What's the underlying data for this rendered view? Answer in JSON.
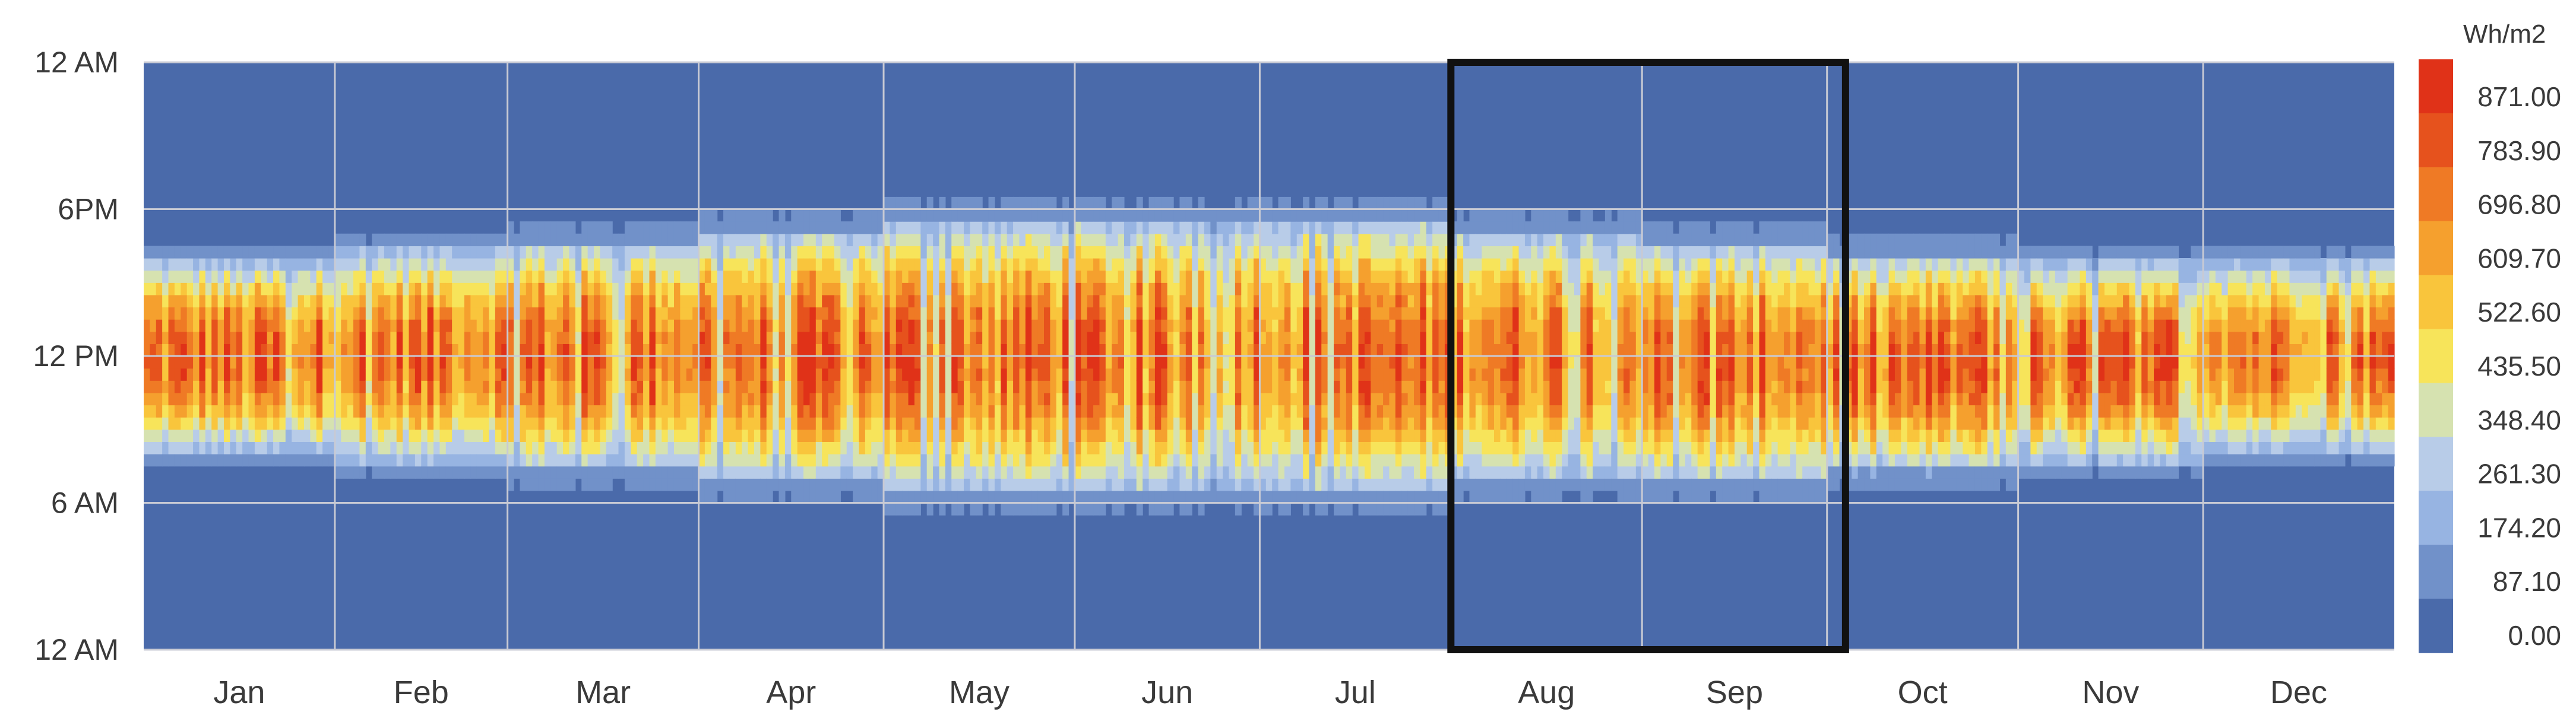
{
  "chart_data": {
    "type": "heatmap",
    "title": "",
    "xlabel": "",
    "ylabel": "",
    "unit_label": "Wh/m2",
    "x_categories": [
      "Jan",
      "Feb",
      "Mar",
      "Apr",
      "May",
      "Jun",
      "Jul",
      "Aug",
      "Sep",
      "Oct",
      "Nov",
      "Dec"
    ],
    "days_per_month": [
      31,
      28,
      31,
      30,
      31,
      30,
      31,
      31,
      30,
      31,
      30,
      31
    ],
    "y_tick_labels": [
      "12 AM",
      "6PM",
      "12 PM",
      "6 AM",
      "12 AM"
    ],
    "y_tick_hours": [
      24,
      18,
      12,
      6,
      0
    ],
    "y_range_hours": [
      0,
      24
    ],
    "x_range_days": [
      1,
      365
    ],
    "color_scale": {
      "min": 0,
      "max": 871,
      "ticks": [
        "871.00",
        "783.90",
        "696.80",
        "609.70",
        "522.60",
        "435.50",
        "348.40",
        "261.30",
        "174.20",
        "87.10",
        "0.00"
      ],
      "colors": [
        "#4a6aaa",
        "#7191c9",
        "#97b4e2",
        "#b8cce8",
        "#d6e2b0",
        "#f7e45a",
        "#f9c53c",
        "#f5a02e",
        "#ef7a25",
        "#e6521d",
        "#e03218"
      ],
      "legend_position": "right"
    },
    "hourly_profile_summer": [
      0,
      0,
      0,
      0,
      0,
      20,
      200,
      420,
      620,
      760,
      830,
      860,
      860,
      830,
      760,
      620,
      430,
      220,
      40,
      0,
      0,
      0,
      0,
      0
    ],
    "daylight_hours_by_month": [
      {
        "month": "Jan",
        "sunrise": 7.5,
        "sunset": 16.5
      },
      {
        "month": "Feb",
        "sunrise": 7.0,
        "sunset": 17.0
      },
      {
        "month": "Mar",
        "sunrise": 6.5,
        "sunset": 17.5
      },
      {
        "month": "Apr",
        "sunrise": 6.0,
        "sunset": 18.0
      },
      {
        "month": "May",
        "sunrise": 5.5,
        "sunset": 18.5
      },
      {
        "month": "Jun",
        "sunrise": 5.5,
        "sunset": 18.5
      },
      {
        "month": "Jul",
        "sunrise": 5.5,
        "sunset": 18.5
      },
      {
        "month": "Aug",
        "sunrise": 6.0,
        "sunset": 18.0
      },
      {
        "month": "Sep",
        "sunrise": 6.0,
        "sunset": 17.5
      },
      {
        "month": "Oct",
        "sunrise": 6.5,
        "sunset": 17.0
      },
      {
        "month": "Nov",
        "sunrise": 7.0,
        "sunset": 16.5
      },
      {
        "month": "Dec",
        "sunrise": 7.5,
        "sunset": 16.5
      }
    ],
    "peak_irradiance_approx": 871,
    "grid": true,
    "highlight_box": {
      "start_month": "Aug",
      "end_month": "Sep",
      "color": "#111111"
    }
  }
}
